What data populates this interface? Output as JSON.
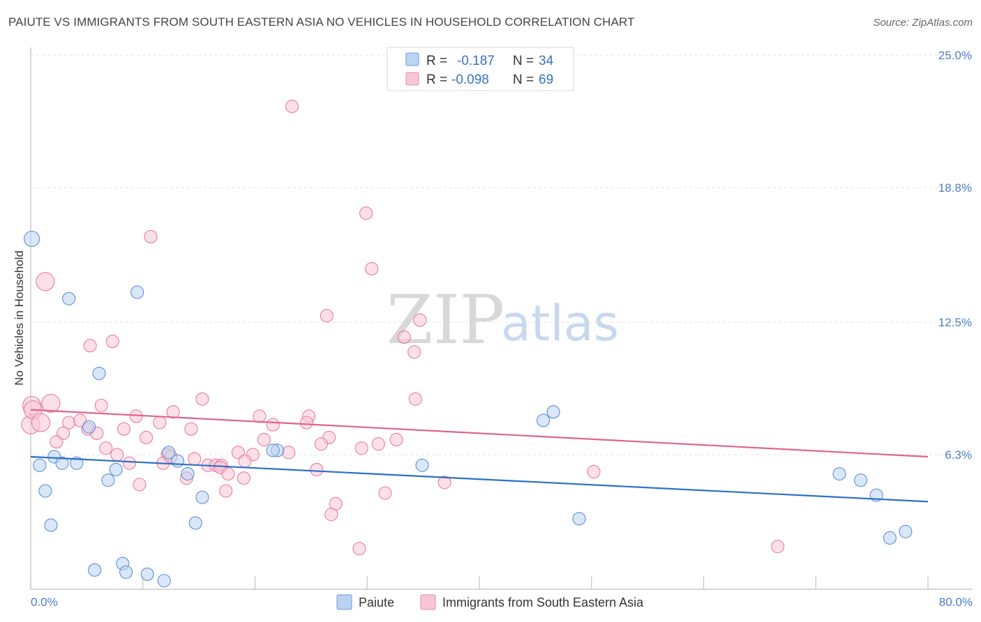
{
  "header": {
    "title": "PAIUTE VS IMMIGRANTS FROM SOUTH EASTERN ASIA NO VEHICLES IN HOUSEHOLD CORRELATION CHART",
    "source": "Source: ZipAtlas.com"
  },
  "watermark": {
    "zip": "ZIP",
    "atlas": "atlas"
  },
  "legend": {
    "rows": [
      {
        "r_label": "R =",
        "r_value": "-0.187",
        "n_label": "N =",
        "n_value": "34",
        "color": "#a9c8f0"
      },
      {
        "r_label": "R =",
        "r_value": "-0.098",
        "n_label": "N =",
        "n_value": "69",
        "color": "#f5b8cc"
      }
    ]
  },
  "bottom_legend": [
    "Paiute",
    "Immigrants from South Eastern Asia"
  ],
  "chart_data": {
    "type": "scatter",
    "title": "PAIUTE VS IMMIGRANTS FROM SOUTH EASTERN ASIA NO VEHICLES IN HOUSEHOLD CORRELATION CHART",
    "xlabel": "",
    "ylabel": "No Vehicles in Household",
    "xlim": [
      0,
      80
    ],
    "ylim": [
      0,
      25
    ],
    "x_tick_labels": [
      "0.0%",
      "80.0%"
    ],
    "y_ticks": [
      6.3,
      12.5,
      18.8,
      25.0
    ],
    "y_tick_labels": [
      "6.3%",
      "12.5%",
      "18.8%",
      "25.0%"
    ],
    "grid": true,
    "legend_position": "top-center",
    "colors": {
      "paiute": "#5b8fd6",
      "paiute_fill": "#b9d3f3",
      "sea": "#e87b9e",
      "sea_fill": "#f9c6d6",
      "paiute_line": "#2a6fc9",
      "sea_line": "#e0648d"
    },
    "series": [
      {
        "name": "Paiute",
        "trend": {
          "x": [
            0,
            80
          ],
          "y": [
            6.2,
            4.1
          ]
        },
        "points": [
          [
            0.1,
            16.4
          ],
          [
            3.4,
            13.6
          ],
          [
            9.5,
            13.9
          ],
          [
            6.1,
            10.1
          ],
          [
            2.1,
            6.2
          ],
          [
            0.8,
            5.8
          ],
          [
            2.8,
            5.9
          ],
          [
            4.1,
            5.9
          ],
          [
            5.2,
            7.6
          ],
          [
            7.6,
            5.6
          ],
          [
            6.9,
            5.1
          ],
          [
            13.1,
            6.0
          ],
          [
            12.3,
            6.4
          ],
          [
            14.0,
            5.4
          ],
          [
            1.3,
            4.6
          ],
          [
            15.3,
            4.3
          ],
          [
            1.8,
            3.0
          ],
          [
            14.7,
            3.1
          ],
          [
            5.7,
            0.9
          ],
          [
            8.2,
            1.2
          ],
          [
            8.5,
            0.8
          ],
          [
            10.4,
            0.7
          ],
          [
            11.9,
            0.4
          ],
          [
            22.0,
            6.5
          ],
          [
            21.6,
            6.5
          ],
          [
            34.9,
            5.8
          ],
          [
            45.7,
            7.9
          ],
          [
            46.6,
            8.3
          ],
          [
            48.9,
            3.3
          ],
          [
            72.1,
            5.4
          ],
          [
            74.0,
            5.1
          ],
          [
            75.4,
            4.4
          ],
          [
            76.6,
            2.4
          ],
          [
            78.0,
            2.7
          ]
        ]
      },
      {
        "name": "Immigrants from South Eastern Asia",
        "trend": {
          "x": [
            0,
            80
          ],
          "y": [
            8.4,
            6.2
          ]
        },
        "points": [
          [
            23.3,
            22.6
          ],
          [
            29.9,
            17.6
          ],
          [
            10.7,
            16.5
          ],
          [
            30.4,
            15.0
          ],
          [
            1.3,
            14.4
          ],
          [
            26.4,
            12.8
          ],
          [
            34.7,
            12.6
          ],
          [
            33.3,
            11.8
          ],
          [
            34.2,
            11.1
          ],
          [
            5.3,
            11.4
          ],
          [
            7.3,
            11.6
          ],
          [
            0.1,
            8.6
          ],
          [
            1.8,
            8.7
          ],
          [
            6.3,
            8.6
          ],
          [
            15.3,
            8.9
          ],
          [
            34.3,
            8.9
          ],
          [
            12.7,
            8.3
          ],
          [
            9.4,
            8.1
          ],
          [
            20.4,
            8.1
          ],
          [
            24.8,
            8.1
          ],
          [
            0.0,
            7.7
          ],
          [
            3.4,
            7.8
          ],
          [
            4.4,
            7.9
          ],
          [
            11.5,
            7.8
          ],
          [
            21.6,
            7.7
          ],
          [
            24.6,
            7.8
          ],
          [
            8.3,
            7.5
          ],
          [
            14.3,
            7.5
          ],
          [
            5.1,
            7.5
          ],
          [
            2.9,
            7.3
          ],
          [
            5.9,
            7.3
          ],
          [
            10.3,
            7.1
          ],
          [
            20.8,
            7.0
          ],
          [
            26.6,
            7.1
          ],
          [
            32.6,
            7.0
          ],
          [
            2.3,
            6.9
          ],
          [
            25.9,
            6.8
          ],
          [
            31.0,
            6.8
          ],
          [
            6.7,
            6.6
          ],
          [
            29.5,
            6.6
          ],
          [
            7.7,
            6.3
          ],
          [
            18.5,
            6.4
          ],
          [
            23.0,
            6.4
          ],
          [
            19.8,
            6.3
          ],
          [
            12.2,
            6.3
          ],
          [
            14.6,
            6.1
          ],
          [
            19.1,
            6.0
          ],
          [
            8.8,
            5.9
          ],
          [
            11.8,
            5.9
          ],
          [
            15.8,
            5.8
          ],
          [
            16.5,
            5.8
          ],
          [
            17.0,
            5.8
          ],
          [
            16.9,
            5.7
          ],
          [
            25.5,
            5.6
          ],
          [
            17.6,
            5.4
          ],
          [
            19.0,
            5.2
          ],
          [
            13.9,
            5.2
          ],
          [
            9.7,
            4.9
          ],
          [
            36.9,
            5.0
          ],
          [
            17.4,
            4.6
          ],
          [
            31.6,
            4.5
          ],
          [
            27.2,
            4.0
          ],
          [
            26.8,
            3.5
          ],
          [
            29.3,
            1.9
          ],
          [
            66.6,
            2.0
          ],
          [
            50.2,
            5.5
          ],
          [
            0.2,
            8.4
          ],
          [
            0.9,
            7.8
          ],
          [
            12.5,
            6.2
          ]
        ]
      }
    ]
  }
}
